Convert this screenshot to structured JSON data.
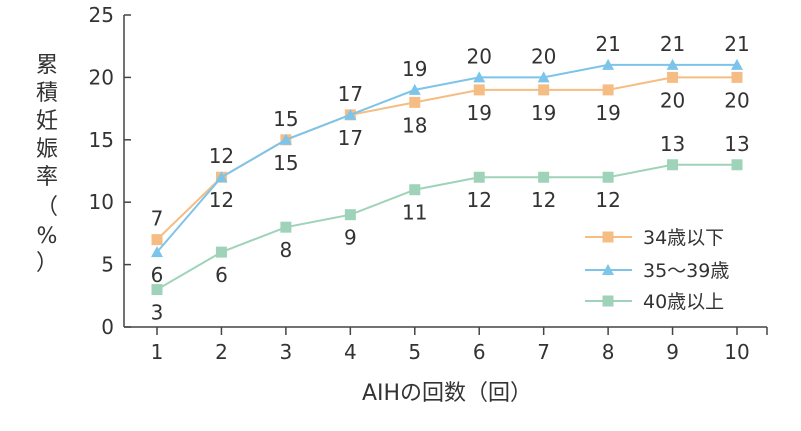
{
  "chart_data": {
    "type": "line",
    "title": "",
    "xlabel": "AIHの回数（回）",
    "ylabel_chars": [
      "累",
      "積",
      "妊",
      "娠",
      "率",
      "（",
      "%",
      "）"
    ],
    "x": [
      1,
      2,
      3,
      4,
      5,
      6,
      7,
      8,
      9,
      10
    ],
    "yticks": [
      0,
      5,
      10,
      15,
      20,
      25
    ],
    "ylim": [
      0,
      25
    ],
    "grid": false,
    "legend_position": "bottom-right",
    "series": [
      {
        "name": "34歳以下",
        "color": "#f5bd84",
        "marker": "square",
        "values": [
          7,
          12,
          15,
          17,
          18,
          19,
          19,
          19,
          20,
          20
        ]
      },
      {
        "name": "35〜39歳",
        "color": "#7cc4e9",
        "marker": "triangle",
        "values": [
          6,
          12,
          15,
          17,
          19,
          20,
          20,
          21,
          21,
          21
        ]
      },
      {
        "name": "40歳以上",
        "color": "#9fd3b9",
        "marker": "square",
        "values": [
          3,
          6,
          8,
          9,
          11,
          12,
          12,
          12,
          13,
          13
        ]
      }
    ],
    "data_labels": [
      {
        "x": 1,
        "y": 7,
        "text": "7",
        "pos": "above"
      },
      {
        "x": 1,
        "y": 6,
        "text": "6",
        "pos": "below"
      },
      {
        "x": 1,
        "y": 3,
        "text": "3",
        "pos": "below"
      },
      {
        "x": 2,
        "y": 12,
        "text": "12",
        "pos": "above"
      },
      {
        "x": 2,
        "y": 12,
        "text": "12",
        "pos": "below"
      },
      {
        "x": 2,
        "y": 6,
        "text": "6",
        "pos": "below"
      },
      {
        "x": 3,
        "y": 15,
        "text": "15",
        "pos": "above"
      },
      {
        "x": 3,
        "y": 15,
        "text": "15",
        "pos": "below"
      },
      {
        "x": 3,
        "y": 8,
        "text": "8",
        "pos": "below"
      },
      {
        "x": 4,
        "y": 17,
        "text": "17",
        "pos": "above"
      },
      {
        "x": 4,
        "y": 17,
        "text": "17",
        "pos": "below"
      },
      {
        "x": 4,
        "y": 9,
        "text": "9",
        "pos": "below"
      },
      {
        "x": 5,
        "y": 19,
        "text": "19",
        "pos": "above"
      },
      {
        "x": 5,
        "y": 18,
        "text": "18",
        "pos": "below"
      },
      {
        "x": 5,
        "y": 11,
        "text": "11",
        "pos": "below"
      },
      {
        "x": 6,
        "y": 20,
        "text": "20",
        "pos": "above"
      },
      {
        "x": 6,
        "y": 19,
        "text": "19",
        "pos": "below"
      },
      {
        "x": 6,
        "y": 12,
        "text": "12",
        "pos": "below"
      },
      {
        "x": 7,
        "y": 20,
        "text": "20",
        "pos": "above"
      },
      {
        "x": 7,
        "y": 19,
        "text": "19",
        "pos": "below"
      },
      {
        "x": 7,
        "y": 12,
        "text": "12",
        "pos": "below"
      },
      {
        "x": 8,
        "y": 21,
        "text": "21",
        "pos": "above"
      },
      {
        "x": 8,
        "y": 19,
        "text": "19",
        "pos": "below"
      },
      {
        "x": 8,
        "y": 12,
        "text": "12",
        "pos": "below"
      },
      {
        "x": 9,
        "y": 21,
        "text": "21",
        "pos": "above"
      },
      {
        "x": 9,
        "y": 20,
        "text": "20",
        "pos": "below"
      },
      {
        "x": 9,
        "y": 13,
        "text": "13",
        "pos": "above"
      },
      {
        "x": 10,
        "y": 21,
        "text": "21",
        "pos": "above"
      },
      {
        "x": 10,
        "y": 20,
        "text": "20",
        "pos": "below"
      },
      {
        "x": 10,
        "y": 13,
        "text": "13",
        "pos": "above"
      }
    ]
  }
}
